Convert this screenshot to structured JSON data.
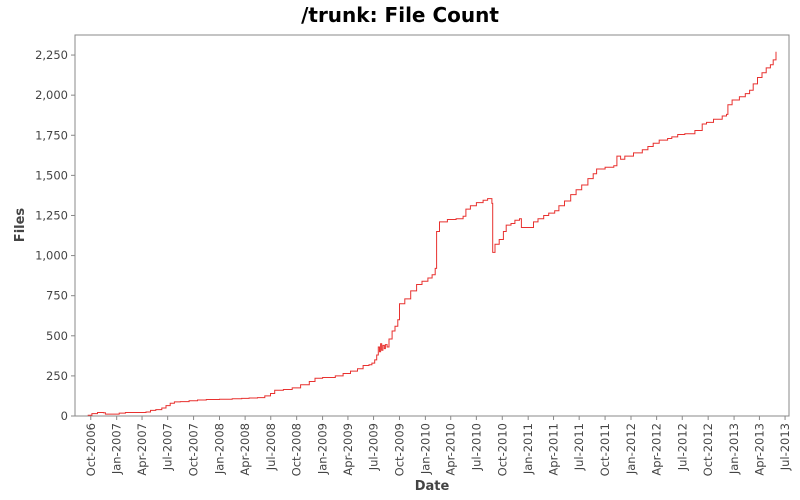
{
  "chart_data": {
    "type": "line",
    "title": "/trunk: File Count",
    "xlabel": "Date",
    "ylabel": "Files",
    "ylim": [
      0,
      2375
    ],
    "xlim": [
      "2006-08-06",
      "2013-07-15"
    ],
    "grid": false,
    "x_ticks": [
      {
        "date": "2006-10-01",
        "label": "Oct-2006"
      },
      {
        "date": "2007-01-01",
        "label": "Jan-2007"
      },
      {
        "date": "2007-04-01",
        "label": "Apr-2007"
      },
      {
        "date": "2007-07-01",
        "label": "Jul-2007"
      },
      {
        "date": "2007-10-01",
        "label": "Oct-2007"
      },
      {
        "date": "2008-01-01",
        "label": "Jan-2008"
      },
      {
        "date": "2008-04-01",
        "label": "Apr-2008"
      },
      {
        "date": "2008-07-01",
        "label": "Jul-2008"
      },
      {
        "date": "2008-10-01",
        "label": "Oct-2008"
      },
      {
        "date": "2009-01-01",
        "label": "Jan-2009"
      },
      {
        "date": "2009-04-01",
        "label": "Apr-2009"
      },
      {
        "date": "2009-07-01",
        "label": "Jul-2009"
      },
      {
        "date": "2009-10-01",
        "label": "Oct-2009"
      },
      {
        "date": "2010-01-01",
        "label": "Jan-2010"
      },
      {
        "date": "2010-04-01",
        "label": "Apr-2010"
      },
      {
        "date": "2010-07-01",
        "label": "Jul-2010"
      },
      {
        "date": "2010-10-01",
        "label": "Oct-2010"
      },
      {
        "date": "2011-01-01",
        "label": "Jan-2011"
      },
      {
        "date": "2011-04-01",
        "label": "Apr-2011"
      },
      {
        "date": "2011-07-01",
        "label": "Jul-2011"
      },
      {
        "date": "2011-10-01",
        "label": "Oct-2011"
      },
      {
        "date": "2012-01-01",
        "label": "Jan-2012"
      },
      {
        "date": "2012-04-01",
        "label": "Apr-2012"
      },
      {
        "date": "2012-07-01",
        "label": "Jul-2012"
      },
      {
        "date": "2012-10-01",
        "label": "Oct-2012"
      },
      {
        "date": "2013-01-01",
        "label": "Jan-2013"
      },
      {
        "date": "2013-04-01",
        "label": "Apr-2013"
      },
      {
        "date": "2013-07-01",
        "label": "Jul-2013"
      }
    ],
    "y_ticks": [
      {
        "value": 0,
        "label": "0"
      },
      {
        "value": 250,
        "label": "250"
      },
      {
        "value": 500,
        "label": "500"
      },
      {
        "value": 750,
        "label": "750"
      },
      {
        "value": 1000,
        "label": "1,000"
      },
      {
        "value": 1250,
        "label": "1,250"
      },
      {
        "value": 1500,
        "label": "1,500"
      },
      {
        "value": 1750,
        "label": "1,750"
      },
      {
        "value": 2000,
        "label": "2,000"
      },
      {
        "value": 2250,
        "label": "2,250"
      }
    ],
    "series": [
      {
        "color": "#e8312f",
        "points": [
          [
            "2006-09-20",
            5
          ],
          [
            "2006-10-05",
            15
          ],
          [
            "2006-10-25",
            22
          ],
          [
            "2006-11-15",
            20
          ],
          [
            "2006-11-22",
            12
          ],
          [
            "2006-12-15",
            12
          ],
          [
            "2007-01-10",
            18
          ],
          [
            "2007-02-01",
            22
          ],
          [
            "2007-03-15",
            22
          ],
          [
            "2007-04-15",
            25
          ],
          [
            "2007-05-01",
            35
          ],
          [
            "2007-05-20",
            40
          ],
          [
            "2007-06-10",
            50
          ],
          [
            "2007-06-25",
            65
          ],
          [
            "2007-07-10",
            80
          ],
          [
            "2007-07-25",
            88
          ],
          [
            "2007-08-15",
            90
          ],
          [
            "2007-09-15",
            95
          ],
          [
            "2007-10-15",
            100
          ],
          [
            "2007-11-15",
            103
          ],
          [
            "2008-01-01",
            105
          ],
          [
            "2008-02-15",
            108
          ],
          [
            "2008-03-20",
            110
          ],
          [
            "2008-04-15",
            112
          ],
          [
            "2008-05-15",
            115
          ],
          [
            "2008-06-10",
            125
          ],
          [
            "2008-06-30",
            140
          ],
          [
            "2008-07-15",
            160
          ],
          [
            "2008-08-15",
            165
          ],
          [
            "2008-09-15",
            175
          ],
          [
            "2008-10-15",
            195
          ],
          [
            "2008-11-15",
            215
          ],
          [
            "2008-12-05",
            235
          ],
          [
            "2009-01-01",
            240
          ],
          [
            "2009-02-15",
            250
          ],
          [
            "2009-03-15",
            265
          ],
          [
            "2009-04-10",
            280
          ],
          [
            "2009-05-05",
            295
          ],
          [
            "2009-05-25",
            315
          ],
          [
            "2009-06-15",
            320
          ],
          [
            "2009-06-25",
            330
          ],
          [
            "2009-07-05",
            350
          ],
          [
            "2009-07-12",
            380
          ],
          [
            "2009-07-18",
            430
          ],
          [
            "2009-07-22",
            400
          ],
          [
            "2009-07-26",
            450
          ],
          [
            "2009-07-30",
            410
          ],
          [
            "2009-08-03",
            440
          ],
          [
            "2009-08-08",
            420
          ],
          [
            "2009-08-12",
            445
          ],
          [
            "2009-08-18",
            430
          ],
          [
            "2009-08-25",
            480
          ],
          [
            "2009-09-05",
            530
          ],
          [
            "2009-09-15",
            560
          ],
          [
            "2009-09-25",
            600
          ],
          [
            "2009-10-01",
            700
          ],
          [
            "2009-10-20",
            730
          ],
          [
            "2009-11-10",
            780
          ],
          [
            "2009-12-01",
            820
          ],
          [
            "2009-12-20",
            840
          ],
          [
            "2010-01-10",
            860
          ],
          [
            "2010-01-25",
            880
          ],
          [
            "2010-02-05",
            920
          ],
          [
            "2010-02-10",
            1150
          ],
          [
            "2010-02-20",
            1210
          ],
          [
            "2010-03-20",
            1225
          ],
          [
            "2010-04-20",
            1230
          ],
          [
            "2010-05-15",
            1245
          ],
          [
            "2010-05-25",
            1290
          ],
          [
            "2010-06-10",
            1310
          ],
          [
            "2010-07-01",
            1330
          ],
          [
            "2010-07-25",
            1345
          ],
          [
            "2010-08-10",
            1355
          ],
          [
            "2010-08-25",
            1325
          ],
          [
            "2010-08-28",
            1020
          ],
          [
            "2010-09-05",
            1070
          ],
          [
            "2010-09-20",
            1100
          ],
          [
            "2010-10-05",
            1150
          ],
          [
            "2010-10-15",
            1190
          ],
          [
            "2010-11-01",
            1200
          ],
          [
            "2010-11-15",
            1220
          ],
          [
            "2010-12-01",
            1230
          ],
          [
            "2010-12-08",
            1175
          ],
          [
            "2011-01-05",
            1175
          ],
          [
            "2011-01-20",
            1210
          ],
          [
            "2011-02-05",
            1230
          ],
          [
            "2011-02-25",
            1250
          ],
          [
            "2011-03-15",
            1265
          ],
          [
            "2011-04-05",
            1280
          ],
          [
            "2011-04-20",
            1310
          ],
          [
            "2011-05-10",
            1340
          ],
          [
            "2011-06-01",
            1380
          ],
          [
            "2011-06-20",
            1410
          ],
          [
            "2011-07-10",
            1440
          ],
          [
            "2011-08-01",
            1480
          ],
          [
            "2011-08-20",
            1510
          ],
          [
            "2011-09-01",
            1540
          ],
          [
            "2011-10-01",
            1550
          ],
          [
            "2011-11-01",
            1560
          ],
          [
            "2011-11-12",
            1620
          ],
          [
            "2011-11-25",
            1600
          ],
          [
            "2011-12-10",
            1620
          ],
          [
            "2012-01-10",
            1640
          ],
          [
            "2012-02-10",
            1660
          ],
          [
            "2012-03-01",
            1680
          ],
          [
            "2012-03-20",
            1700
          ],
          [
            "2012-04-10",
            1720
          ],
          [
            "2012-05-10",
            1730
          ],
          [
            "2012-05-25",
            1740
          ],
          [
            "2012-06-15",
            1755
          ],
          [
            "2012-07-10",
            1760
          ],
          [
            "2012-08-15",
            1780
          ],
          [
            "2012-09-10",
            1820
          ],
          [
            "2012-09-25",
            1830
          ],
          [
            "2012-10-20",
            1850
          ],
          [
            "2012-11-20",
            1870
          ],
          [
            "2012-12-05",
            1880
          ],
          [
            "2012-12-10",
            1940
          ],
          [
            "2012-12-25",
            1970
          ],
          [
            "2013-01-20",
            1990
          ],
          [
            "2013-02-10",
            2010
          ],
          [
            "2013-02-25",
            2030
          ],
          [
            "2013-03-10",
            2070
          ],
          [
            "2013-03-25",
            2110
          ],
          [
            "2013-04-10",
            2140
          ],
          [
            "2013-04-25",
            2170
          ],
          [
            "2013-05-10",
            2190
          ],
          [
            "2013-05-20",
            2220
          ],
          [
            "2013-05-30",
            2270
          ]
        ]
      }
    ]
  }
}
